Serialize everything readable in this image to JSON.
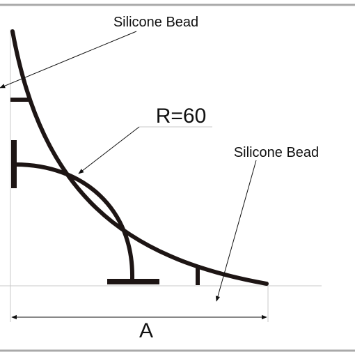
{
  "diagram": {
    "annotations": {
      "silicone_bead_top": "Silicone Bead",
      "silicone_bead_right": "Silicone Bead",
      "radius": "R=60",
      "dimension_a": "A"
    },
    "colors": {
      "profile": "#1d1514",
      "guide_line": "#c8c8c8",
      "border": "#a9a9a9",
      "text": "#111111"
    }
  }
}
